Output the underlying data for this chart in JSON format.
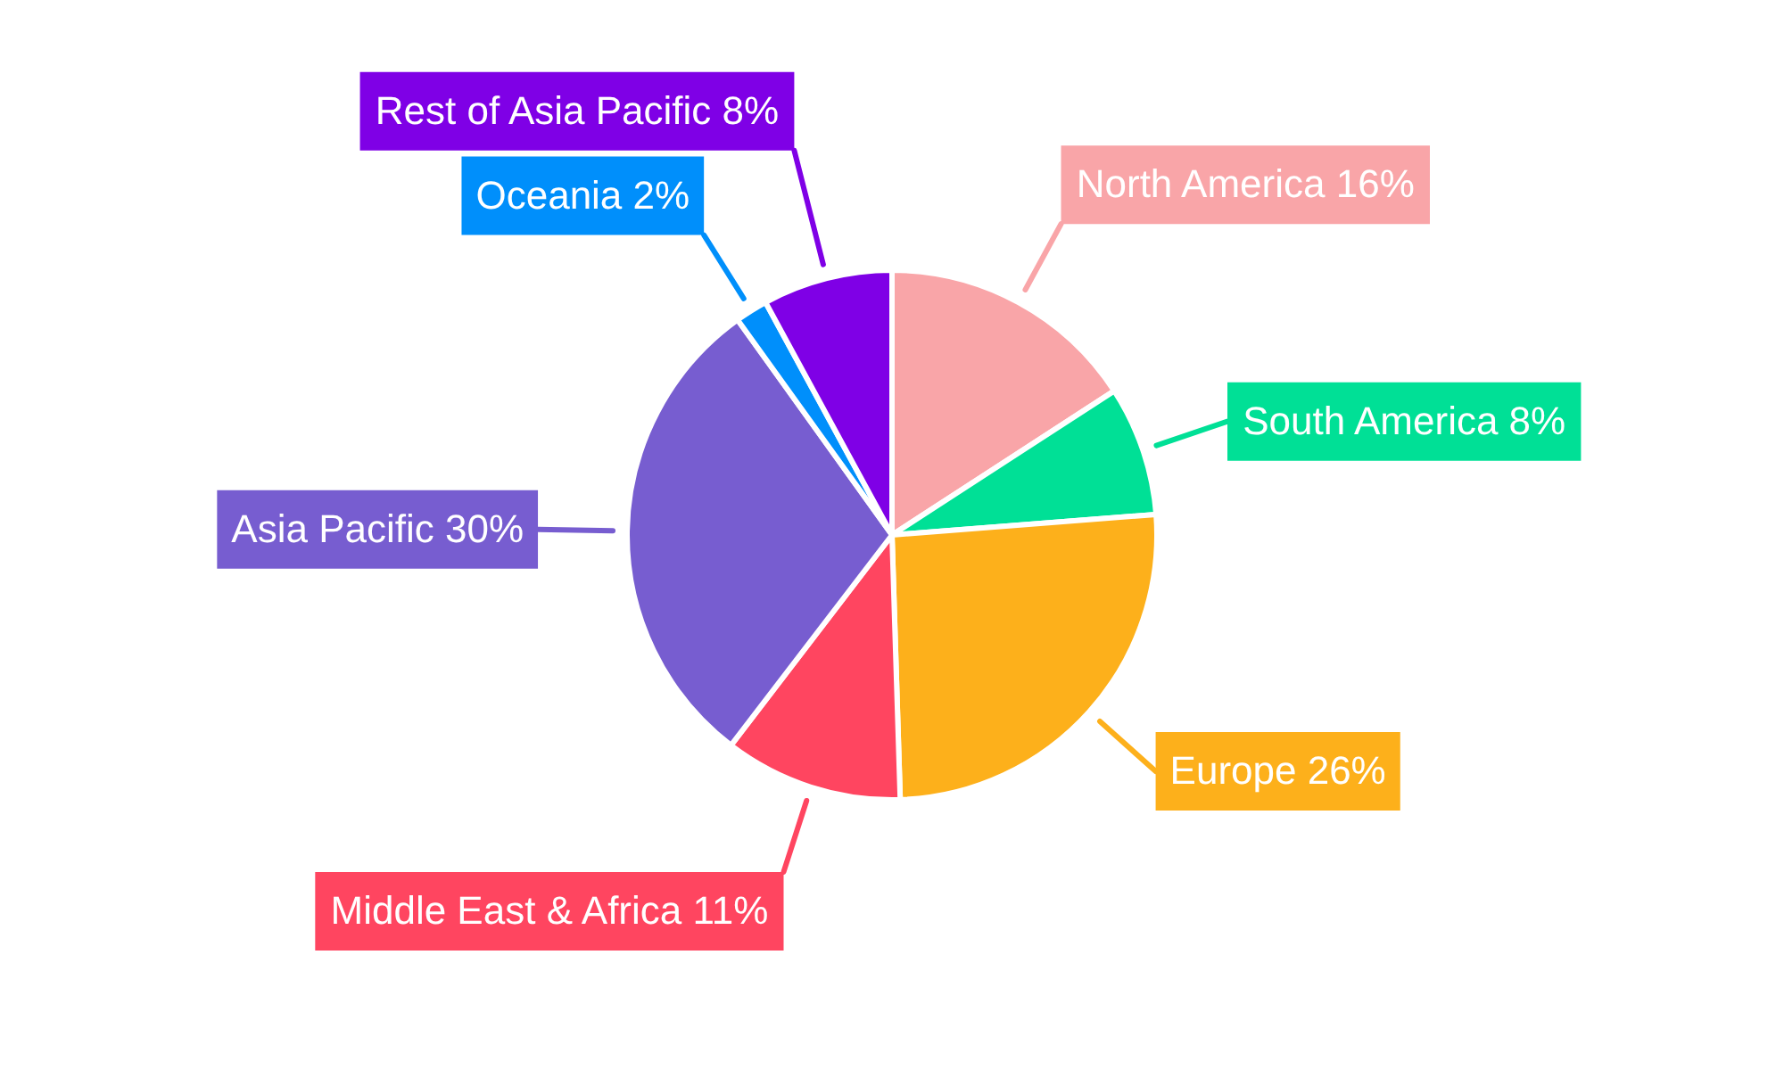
{
  "chart_data": {
    "type": "pie",
    "categories": [
      "North America",
      "South America",
      "Europe",
      "Middle East & Africa",
      "Asia Pacific",
      "Oceania",
      "Rest of Asia Pacific"
    ],
    "values": [
      16,
      8,
      26,
      11,
      30,
      2,
      8
    ],
    "value_labels": [
      "16%",
      "8%",
      "26%",
      "11%",
      "30%",
      "2%",
      "8%"
    ],
    "colors": [
      "#f9a5a8",
      "#00e096",
      "#fdb01b",
      "#ff4560",
      "#775dd0",
      "#008ffb",
      "#7f00e6"
    ],
    "legend": false
  }
}
